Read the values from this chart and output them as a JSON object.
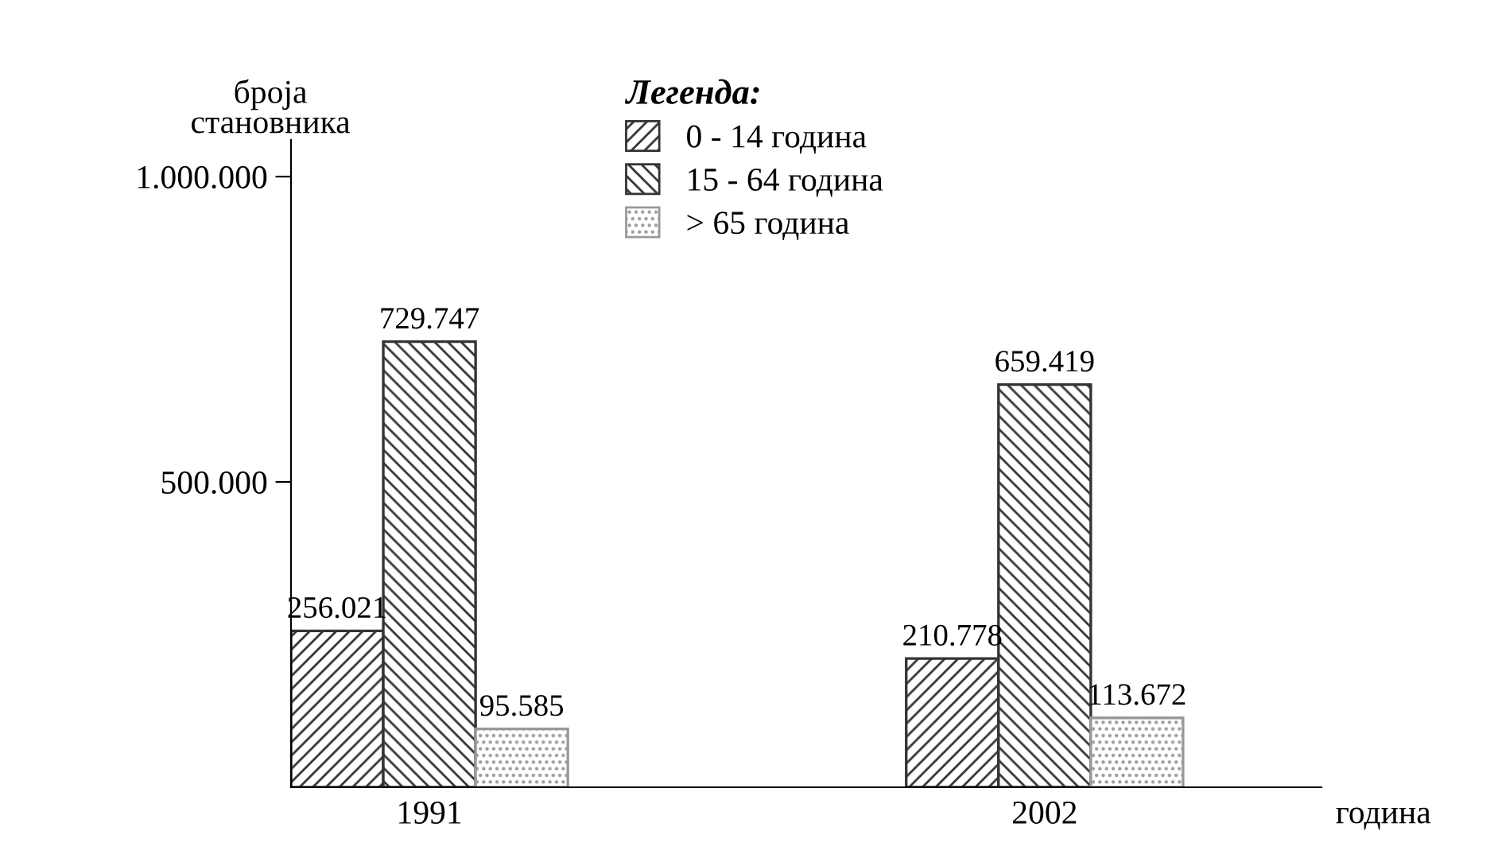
{
  "chart_data": {
    "type": "bar",
    "ylabel": "броја\nстановника",
    "xlabel": "година",
    "legend_title": "Легенда:",
    "categories": [
      "1991",
      "2002"
    ],
    "series": [
      {
        "name": "0 - 14 година",
        "color": "#333333",
        "values": [
          256021,
          210778
        ],
        "value_labels": [
          "256.021",
          "210.778"
        ]
      },
      {
        "name": "15 - 64 година",
        "color": "#333333",
        "values": [
          729747,
          659419
        ],
        "value_labels": [
          "729.747",
          "659.419"
        ]
      },
      {
        "name": "> 65 година",
        "color": "#999999",
        "values": [
          95585,
          113672
        ],
        "value_labels": [
          "95.585",
          "113.672"
        ]
      }
    ],
    "ylim": [
      0,
      1060000
    ],
    "yticks": [
      {
        "value": 500000,
        "label": "500.000"
      },
      {
        "value": 1000000,
        "label": "1.000.000"
      }
    ],
    "grid": false,
    "legend": "top"
  }
}
